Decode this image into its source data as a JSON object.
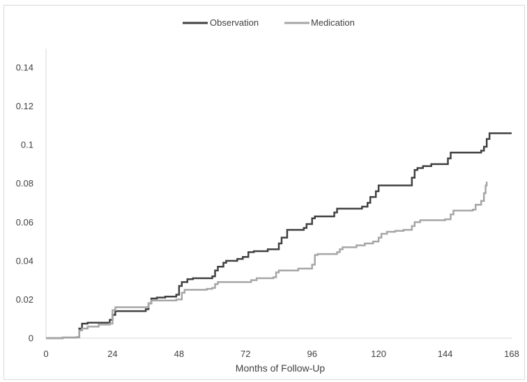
{
  "chart_data": {
    "type": "line",
    "title": "",
    "xlabel": "Months of Follow-Up",
    "ylabel": "",
    "xlim": [
      0,
      168
    ],
    "ylim": [
      0,
      0.14
    ],
    "x_ticks": [
      0,
      24,
      48,
      72,
      96,
      120,
      144,
      168
    ],
    "y_ticks": [
      0,
      0.02,
      0.04,
      0.06,
      0.08,
      0.1,
      0.12,
      0.14
    ],
    "x_tick_labels": [
      "0",
      "24",
      "48",
      "72",
      "96",
      "120",
      "144",
      "168"
    ],
    "y_tick_labels": [
      "0",
      "0.02",
      "0.04",
      "0.06",
      "0.08",
      "0.1",
      "0.12",
      "0.14"
    ],
    "grid": false,
    "legend_position": "top-center",
    "step": true,
    "series": [
      {
        "name": "Observation",
        "color": "#404040",
        "points": [
          [
            0,
            0
          ],
          [
            6,
            0.0003
          ],
          [
            11,
            0.0005
          ],
          [
            12,
            0.005
          ],
          [
            13,
            0.0075
          ],
          [
            15,
            0.008
          ],
          [
            23,
            0.0095
          ],
          [
            24,
            0.012
          ],
          [
            25,
            0.014
          ],
          [
            36,
            0.015
          ],
          [
            37,
            0.018
          ],
          [
            38,
            0.0205
          ],
          [
            40,
            0.021
          ],
          [
            43,
            0.0215
          ],
          [
            47,
            0.0225
          ],
          [
            48,
            0.027
          ],
          [
            49,
            0.029
          ],
          [
            51,
            0.0305
          ],
          [
            53,
            0.031
          ],
          [
            56,
            0.031
          ],
          [
            60,
            0.032
          ],
          [
            61,
            0.035
          ],
          [
            62,
            0.037
          ],
          [
            64,
            0.039
          ],
          [
            65,
            0.04
          ],
          [
            69,
            0.041
          ],
          [
            71,
            0.042
          ],
          [
            73,
            0.0445
          ],
          [
            75,
            0.045
          ],
          [
            80,
            0.046
          ],
          [
            84,
            0.049
          ],
          [
            85,
            0.052
          ],
          [
            87,
            0.056
          ],
          [
            93,
            0.057
          ],
          [
            94,
            0.059
          ],
          [
            96,
            0.062
          ],
          [
            97,
            0.063
          ],
          [
            104,
            0.065
          ],
          [
            105,
            0.067
          ],
          [
            114,
            0.068
          ],
          [
            116,
            0.07
          ],
          [
            117,
            0.073
          ],
          [
            119,
            0.076
          ],
          [
            120,
            0.079
          ],
          [
            132,
            0.083
          ],
          [
            133,
            0.087
          ],
          [
            134,
            0.088
          ],
          [
            136,
            0.089
          ],
          [
            139,
            0.09
          ],
          [
            145,
            0.093
          ],
          [
            146,
            0.096
          ],
          [
            157,
            0.097
          ],
          [
            158,
            0.099
          ],
          [
            159,
            0.103
          ],
          [
            160,
            0.106
          ],
          [
            168,
            0.106
          ]
        ]
      },
      {
        "name": "Medication",
        "color": "#a6a6a6",
        "points": [
          [
            0,
            0
          ],
          [
            6,
            0.0003
          ],
          [
            11,
            0.0005
          ],
          [
            12,
            0.004
          ],
          [
            13,
            0.005
          ],
          [
            15,
            0.006
          ],
          [
            19,
            0.007
          ],
          [
            23,
            0.0075
          ],
          [
            24,
            0.0145
          ],
          [
            25,
            0.016
          ],
          [
            37,
            0.018
          ],
          [
            38,
            0.0195
          ],
          [
            46,
            0.0195
          ],
          [
            47,
            0.02
          ],
          [
            49,
            0.0235
          ],
          [
            50,
            0.025
          ],
          [
            58,
            0.0255
          ],
          [
            60,
            0.026
          ],
          [
            61,
            0.028
          ],
          [
            62,
            0.029
          ],
          [
            72,
            0.029
          ],
          [
            74,
            0.03
          ],
          [
            76,
            0.031
          ],
          [
            82,
            0.0315
          ],
          [
            83,
            0.034
          ],
          [
            84,
            0.035
          ],
          [
            91,
            0.036
          ],
          [
            96,
            0.038
          ],
          [
            97,
            0.043
          ],
          [
            98,
            0.0435
          ],
          [
            105,
            0.0445
          ],
          [
            106,
            0.046
          ],
          [
            107,
            0.047
          ],
          [
            112,
            0.048
          ],
          [
            115,
            0.049
          ],
          [
            118,
            0.05
          ],
          [
            120,
            0.052
          ],
          [
            121,
            0.054
          ],
          [
            123,
            0.055
          ],
          [
            126,
            0.0555
          ],
          [
            129,
            0.056
          ],
          [
            132,
            0.058
          ],
          [
            133,
            0.06
          ],
          [
            135,
            0.061
          ],
          [
            144,
            0.0615
          ],
          [
            146,
            0.064
          ],
          [
            147,
            0.066
          ],
          [
            154,
            0.0665
          ],
          [
            155,
            0.069
          ],
          [
            157,
            0.071
          ],
          [
            158,
            0.075
          ],
          [
            158.6,
            0.079
          ],
          [
            159,
            0.081
          ]
        ]
      }
    ]
  }
}
